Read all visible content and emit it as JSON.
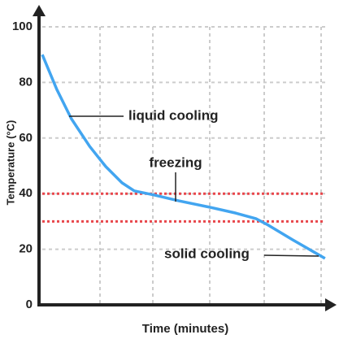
{
  "chart_data": {
    "type": "line",
    "x_label": "Time (minutes)",
    "y_label": "Temperature (°C)",
    "x": [
      0,
      0.26,
      0.52,
      0.85,
      1.14,
      1.43,
      1.65,
      2.01,
      2.45,
      3.03,
      3.47,
      3.83,
      4.05,
      4.49,
      5.07
    ],
    "xlim": [
      0,
      5.2
    ],
    "series": [
      {
        "name": "temperature",
        "color": "#42a5f0",
        "values": [
          90,
          77.5,
          67,
          57,
          49.7,
          43.9,
          41,
          39.5,
          37.4,
          35,
          33,
          31,
          28.7,
          23.4,
          16.7
        ]
      }
    ],
    "ylim": [
      0,
      100
    ],
    "yticks": [
      0,
      20,
      40,
      60,
      80,
      100
    ],
    "grid": true,
    "reference_lines": [
      {
        "value": 40,
        "color": "#e8474c"
      },
      {
        "value": 30,
        "color": "#e8474c"
      }
    ],
    "annotations": [
      "liquid cooling",
      "freezing",
      "solid cooling"
    ]
  }
}
